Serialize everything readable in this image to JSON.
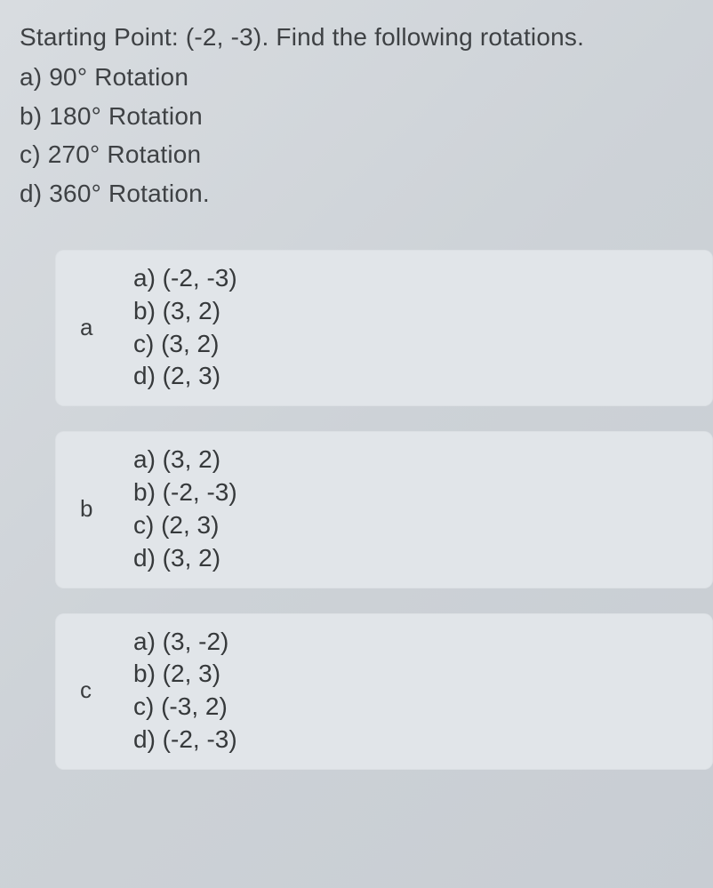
{
  "question": {
    "intro": "Starting Point: (-2, -3). Find the following rotations.",
    "parts": [
      {
        "label": "a)",
        "text": "90°  Rotation"
      },
      {
        "label": "b)",
        "text": "180°  Rotation"
      },
      {
        "label": "c)",
        "text": "270°  Rotation"
      },
      {
        "label": "d)",
        "text": "360°  Rotation."
      }
    ]
  },
  "options": [
    {
      "letter": "a",
      "lines": [
        "a) (-2, -3)",
        "b) (3, 2)",
        "c) (3, 2)",
        "d) (2, 3)"
      ]
    },
    {
      "letter": "b",
      "lines": [
        "a) (3, 2)",
        "b) (-2, -3)",
        "c) (2, 3)",
        "d) (3, 2)"
      ]
    },
    {
      "letter": "c",
      "lines": [
        "a) (3, -2)",
        "b) (2, 3)",
        "c) (-3, 2)",
        "d) (-2, -3)"
      ]
    }
  ],
  "style": {
    "body_bg_start": "#d8dce0",
    "body_bg_end": "#c8cdd3",
    "card_bg": "#e1e5e9",
    "text_color": "#3a3d3f",
    "question_fontsize": 28,
    "option_fontsize": 28,
    "card_radius": 10
  }
}
